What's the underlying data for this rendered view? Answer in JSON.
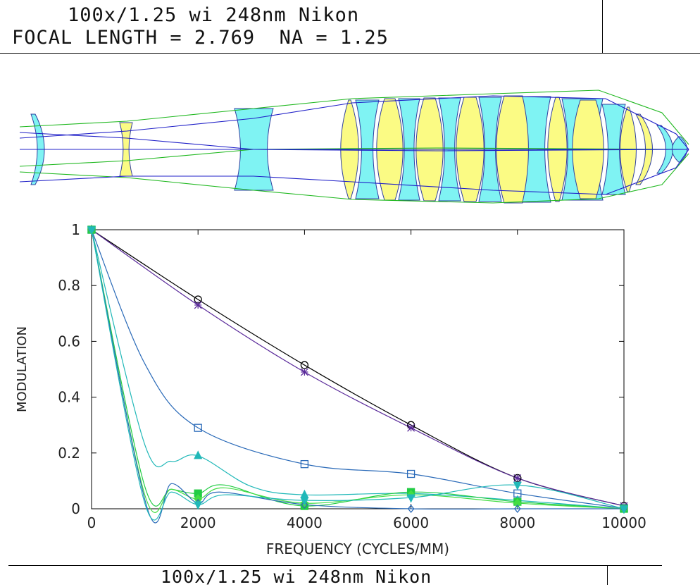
{
  "header": {
    "title": "100x/1.25 wi 248nm Nikon",
    "specs": "FOCAL LENGTH = 2.769  NA = 1.25"
  },
  "footer": {
    "title": "100x/1.25 wi 248nm Nikon"
  },
  "chart_data": {
    "type": "line",
    "xlabel": "FREQUENCY (CYCLES/MM)",
    "ylabel": "MODULATION",
    "xlim": [
      0,
      10000
    ],
    "ylim": [
      0,
      1
    ],
    "xticks": [
      "0",
      "2000",
      "4000",
      "6000",
      "8000",
      "10000"
    ],
    "yticks": [
      "0",
      "0.2",
      "0.4",
      "0.6",
      "0.8",
      "1"
    ],
    "grid": false,
    "series": [
      {
        "color": "#000000",
        "marker": "circle",
        "x": [
          0,
          2000,
          4000,
          6000,
          8000,
          10000
        ],
        "y": [
          1,
          0.75,
          0.515,
          0.3,
          0.11,
          0.01
        ]
      },
      {
        "color": "#5a2a9a",
        "marker": "asterisk",
        "x": [
          0,
          2000,
          4000,
          6000,
          8000,
          10000
        ],
        "y": [
          1,
          0.73,
          0.49,
          0.29,
          0.11,
          0.01
        ]
      },
      {
        "color": "#2a6ab8",
        "marker": "square",
        "x": [
          0,
          1000,
          2000,
          4000,
          6000,
          8000,
          10000
        ],
        "y": [
          1,
          0.52,
          0.29,
          0.16,
          0.125,
          0.055,
          0.002
        ]
      },
      {
        "color": "#20b8b8",
        "marker": "triangle-up",
        "x": [
          0,
          1000,
          1500,
          2000,
          3000,
          4000,
          6000,
          8000,
          10000
        ],
        "y": [
          1,
          0.23,
          0.17,
          0.19,
          0.08,
          0.05,
          0.055,
          0.03,
          0
        ]
      },
      {
        "color": "#22cc44",
        "marker": "square-filled",
        "x": [
          0,
          1000,
          1500,
          2000,
          2500,
          4000,
          6000,
          8000,
          10000
        ],
        "y": [
          1,
          0.08,
          0.07,
          0.055,
          0.085,
          0.01,
          0.06,
          0.025,
          0
        ]
      },
      {
        "color": "#44dd44",
        "marker": "diamond",
        "x": [
          0,
          1000,
          1500,
          2000,
          2500,
          4000,
          6000,
          8000,
          10000
        ],
        "y": [
          1,
          0.05,
          0.07,
          0.035,
          0.075,
          0.02,
          0.05,
          0.02,
          0
        ]
      },
      {
        "color": "#2a6ab8",
        "marker": "diamond-open",
        "x": [
          0,
          1050,
          1500,
          2000,
          2400,
          4000,
          6000,
          8000,
          10000
        ],
        "y": [
          1,
          0.0,
          0.09,
          0.02,
          0.06,
          0.015,
          0.0,
          0.0,
          0
        ]
      },
      {
        "color": "#20b8b8",
        "marker": "triangle-down",
        "x": [
          0,
          1000,
          1500,
          2000,
          2500,
          4000,
          6000,
          8000,
          10000
        ],
        "y": [
          1,
          0.02,
          0.06,
          0.015,
          0.05,
          0.03,
          0.04,
          0.085,
          0
        ]
      }
    ]
  },
  "lens": {
    "element_colors": {
      "cyan": "#7ff3f3",
      "yellow": "#fbfb84",
      "ray_blue": "#2020c8",
      "ray_green": "#20b820"
    }
  }
}
